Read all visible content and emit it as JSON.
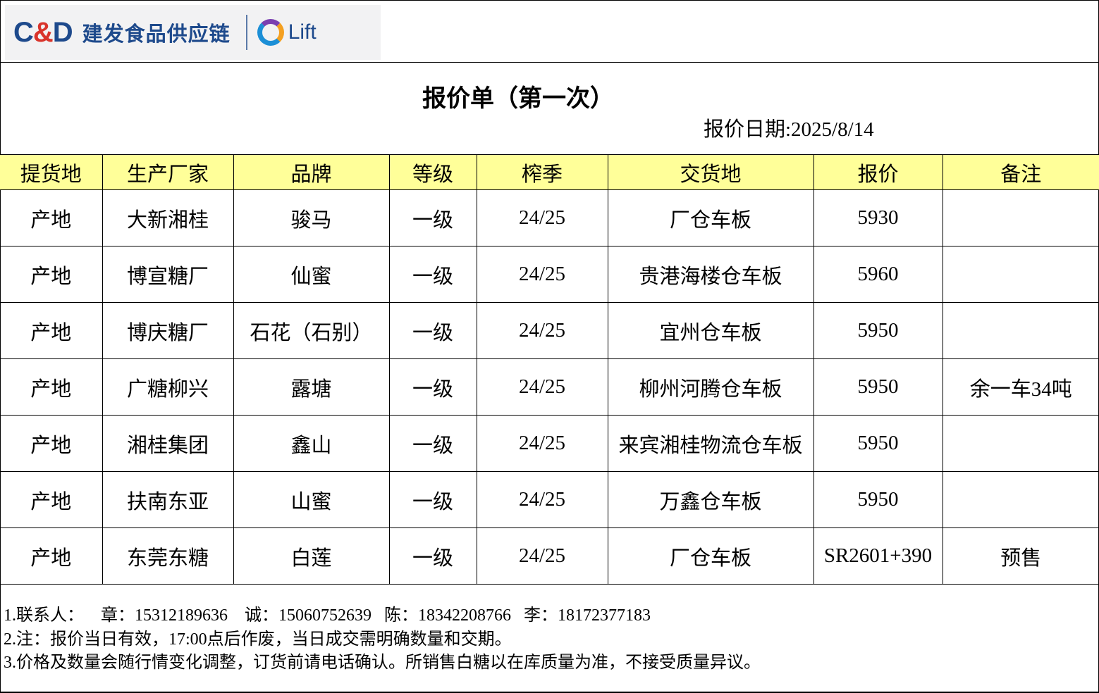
{
  "logo": {
    "brand": "C&D",
    "name": "建发食品供应链",
    "sub_brand": "Lift"
  },
  "title": "报价单（第一次）",
  "date_label": "报价日期:2025/8/14",
  "table": {
    "headers": [
      "提货地",
      "生产厂家",
      "品牌",
      "等级",
      "榨季",
      "交货地",
      "报价",
      "备注"
    ],
    "rows": [
      [
        "产地",
        "大新湘桂",
        "骏马",
        "一级",
        "24/25",
        "厂仓车板",
        "5930",
        ""
      ],
      [
        "产地",
        "博宣糖厂",
        "仙蜜",
        "一级",
        "24/25",
        "贵港海楼仓车板",
        "5960",
        ""
      ],
      [
        "产地",
        "博庆糖厂",
        "石花（石别）",
        "一级",
        "24/25",
        "宜州仓车板",
        "5950",
        ""
      ],
      [
        "产地",
        "广糖柳兴",
        "露塘",
        "一级",
        "24/25",
        "柳州河腾仓车板",
        "5950",
        "余一车34吨"
      ],
      [
        "产地",
        "湘桂集团",
        "鑫山",
        "一级",
        "24/25",
        "来宾湘桂物流仓车板",
        "5950",
        ""
      ],
      [
        "产地",
        "扶南东亚",
        "山蜜",
        "一级",
        "24/25",
        "万鑫仓车板",
        "5950",
        ""
      ],
      [
        "产地",
        "东莞东糖",
        "白莲",
        "一级",
        "24/25",
        "厂仓车板",
        "SR2601+390",
        "预售"
      ]
    ]
  },
  "notes": [
    "1.联系人：    章：15312189636    诚：15060752639   陈：18342208766   李：18172377183",
    "2.注：报价当日有效，17:00点后作废，当日成交需明确数量和交期。",
    "3.价格及数量会随行情变化调整，订货前请电话确认。所销售白糖以在库质量为准，不接受质量异议。"
  ]
}
